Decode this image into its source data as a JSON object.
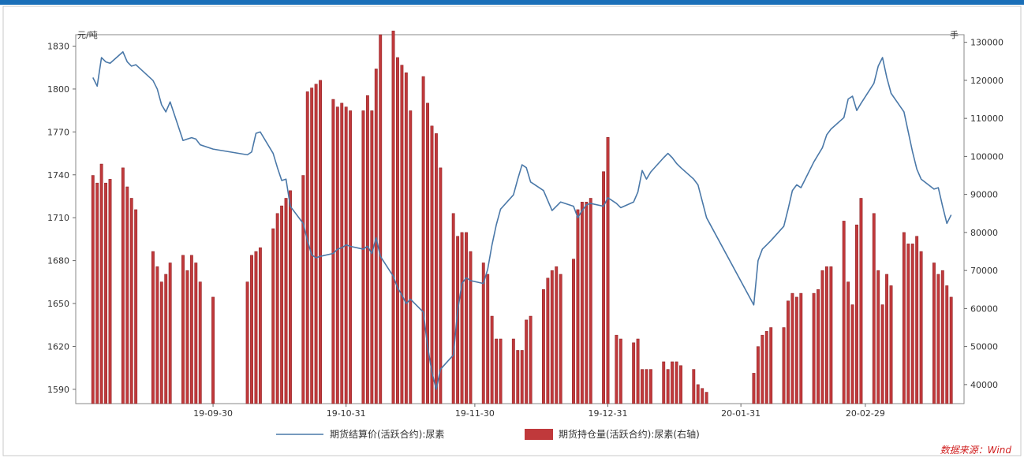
{
  "chart_data": {
    "type": "bar+line",
    "left_unit": "元/吨",
    "right_unit": "手",
    "source": "数据来源：Wind",
    "y_left_ticks": [
      1590,
      1620,
      1650,
      1680,
      1710,
      1740,
      1770,
      1800,
      1830
    ],
    "y_right_ticks": [
      40000,
      50000,
      60000,
      70000,
      80000,
      90000,
      100000,
      110000,
      120000,
      130000
    ],
    "y_left_range": [
      1580,
      1838
    ],
    "y_right_range": [
      35000,
      132000
    ],
    "x_range": [
      "2019-08-29",
      "2020-03-23"
    ],
    "x_ticks": [
      {
        "date": "2019-09-30",
        "label": "19-09-30"
      },
      {
        "date": "2019-10-31",
        "label": "19-10-31"
      },
      {
        "date": "2019-11-30",
        "label": "19-11-30"
      },
      {
        "date": "2019-12-31",
        "label": "19-12-31"
      },
      {
        "date": "2020-01-31",
        "label": "20-01-31"
      },
      {
        "date": "2020-02-29",
        "label": "20-02-29"
      }
    ],
    "legend": [
      "期货结算价(活跃合约):尿素",
      "期货持仓量(活跃合约):尿素(右轴)"
    ],
    "colors": {
      "line": "#4a78a8",
      "bar": "#c0393b",
      "bar_edge": "#8a1f22",
      "frame": "#1a6fb8"
    },
    "series_line": {
      "name": "期货结算价(活跃合约):尿素",
      "points": [
        [
          "2019-09-02",
          1808
        ],
        [
          "2019-09-03",
          1802
        ],
        [
          "2019-09-04",
          1822
        ],
        [
          "2019-09-05",
          1819
        ],
        [
          "2019-09-06",
          1818
        ],
        [
          "2019-09-09",
          1826
        ],
        [
          "2019-09-10",
          1819
        ],
        [
          "2019-09-11",
          1816
        ],
        [
          "2019-09-12",
          1817
        ],
        [
          "2019-09-16",
          1806
        ],
        [
          "2019-09-17",
          1800
        ],
        [
          "2019-09-18",
          1789
        ],
        [
          "2019-09-19",
          1784
        ],
        [
          "2019-09-20",
          1791
        ],
        [
          "2019-09-23",
          1764
        ],
        [
          "2019-09-24",
          1765
        ],
        [
          "2019-09-25",
          1766
        ],
        [
          "2019-09-26",
          1765
        ],
        [
          "2019-09-27",
          1761
        ],
        [
          "2019-09-30",
          1758
        ],
        [
          "2019-10-08",
          1754
        ],
        [
          "2019-10-09",
          1756
        ],
        [
          "2019-10-10",
          1769
        ],
        [
          "2019-10-11",
          1770
        ],
        [
          "2019-10-14",
          1755
        ],
        [
          "2019-10-15",
          1745
        ],
        [
          "2019-10-16",
          1736
        ],
        [
          "2019-10-17",
          1737
        ],
        [
          "2019-10-18",
          1718
        ],
        [
          "2019-10-21",
          1706
        ],
        [
          "2019-10-22",
          1694
        ],
        [
          "2019-10-23",
          1684
        ],
        [
          "2019-10-24",
          1682
        ],
        [
          "2019-10-25",
          1683
        ],
        [
          "2019-10-28",
          1685
        ],
        [
          "2019-10-29",
          1688
        ],
        [
          "2019-10-30",
          1689
        ],
        [
          "2019-10-31",
          1691
        ],
        [
          "2019-11-01",
          1690
        ],
        [
          "2019-11-04",
          1688
        ],
        [
          "2019-11-05",
          1690
        ],
        [
          "2019-11-06",
          1685
        ],
        [
          "2019-11-07",
          1696
        ],
        [
          "2019-11-08",
          1683
        ],
        [
          "2019-11-11",
          1669
        ],
        [
          "2019-11-12",
          1661
        ],
        [
          "2019-11-13",
          1656
        ],
        [
          "2019-11-14",
          1650
        ],
        [
          "2019-11-15",
          1653
        ],
        [
          "2019-11-18",
          1644
        ],
        [
          "2019-11-19",
          1620
        ],
        [
          "2019-11-20",
          1602
        ],
        [
          "2019-11-21",
          1590
        ],
        [
          "2019-11-22",
          1604
        ],
        [
          "2019-11-25",
          1614
        ],
        [
          "2019-11-26",
          1645
        ],
        [
          "2019-11-27",
          1664
        ],
        [
          "2019-11-28",
          1668
        ],
        [
          "2019-11-29",
          1666
        ],
        [
          "2019-12-02",
          1664
        ],
        [
          "2019-12-03",
          1674
        ],
        [
          "2019-12-04",
          1691
        ],
        [
          "2019-12-05",
          1705
        ],
        [
          "2019-12-06",
          1716
        ],
        [
          "2019-12-09",
          1726
        ],
        [
          "2019-12-10",
          1737
        ],
        [
          "2019-12-11",
          1747
        ],
        [
          "2019-12-12",
          1745
        ],
        [
          "2019-12-13",
          1735
        ],
        [
          "2019-12-16",
          1729
        ],
        [
          "2019-12-17",
          1722
        ],
        [
          "2019-12-18",
          1715
        ],
        [
          "2019-12-19",
          1718
        ],
        [
          "2019-12-20",
          1721
        ],
        [
          "2019-12-23",
          1718
        ],
        [
          "2019-12-24",
          1710
        ],
        [
          "2019-12-25",
          1715
        ],
        [
          "2019-12-26",
          1719
        ],
        [
          "2019-12-27",
          1720
        ],
        [
          "2019-12-30",
          1718
        ],
        [
          "2019-12-31",
          1724
        ],
        [
          "2020-01-02",
          1720
        ],
        [
          "2020-01-03",
          1717
        ],
        [
          "2020-01-06",
          1721
        ],
        [
          "2020-01-07",
          1728
        ],
        [
          "2020-01-08",
          1743
        ],
        [
          "2020-01-09",
          1737
        ],
        [
          "2020-01-10",
          1742
        ],
        [
          "2020-01-13",
          1752
        ],
        [
          "2020-01-14",
          1755
        ],
        [
          "2020-01-15",
          1752
        ],
        [
          "2020-01-16",
          1748
        ],
        [
          "2020-01-17",
          1745
        ],
        [
          "2020-01-20",
          1737
        ],
        [
          "2020-01-21",
          1733
        ],
        [
          "2020-01-23",
          1710
        ],
        [
          "2020-02-03",
          1649
        ],
        [
          "2020-02-04",
          1680
        ],
        [
          "2020-02-05",
          1688
        ],
        [
          "2020-02-06",
          1691
        ],
        [
          "2020-02-07",
          1694
        ],
        [
          "2020-02-10",
          1704
        ],
        [
          "2020-02-11",
          1716
        ],
        [
          "2020-02-12",
          1729
        ],
        [
          "2020-02-13",
          1733
        ],
        [
          "2020-02-14",
          1731
        ],
        [
          "2020-02-17",
          1749
        ],
        [
          "2020-02-18",
          1754
        ],
        [
          "2020-02-19",
          1759
        ],
        [
          "2020-02-20",
          1768
        ],
        [
          "2020-02-21",
          1772
        ],
        [
          "2020-02-24",
          1780
        ],
        [
          "2020-02-25",
          1793
        ],
        [
          "2020-02-26",
          1795
        ],
        [
          "2020-02-27",
          1785
        ],
        [
          "2020-02-28",
          1790
        ],
        [
          "2020-03-02",
          1804
        ],
        [
          "2020-03-03",
          1816
        ],
        [
          "2020-03-04",
          1822
        ],
        [
          "2020-03-05",
          1808
        ],
        [
          "2020-03-06",
          1797
        ],
        [
          "2020-03-09",
          1784
        ],
        [
          "2020-03-10",
          1770
        ],
        [
          "2020-03-11",
          1756
        ],
        [
          "2020-03-12",
          1744
        ],
        [
          "2020-03-13",
          1737
        ],
        [
          "2020-03-16",
          1730
        ],
        [
          "2020-03-17",
          1731
        ],
        [
          "2020-03-18",
          1718
        ],
        [
          "2020-03-19",
          1706
        ],
        [
          "2020-03-20",
          1712
        ]
      ]
    },
    "series_bar": {
      "name": "期货持仓量(活跃合约):尿素(右轴)",
      "points": [
        [
          "2019-09-02",
          95000
        ],
        [
          "2019-09-03",
          93000
        ],
        [
          "2019-09-04",
          98000
        ],
        [
          "2019-09-05",
          93000
        ],
        [
          "2019-09-06",
          94000
        ],
        [
          "2019-09-09",
          97000
        ],
        [
          "2019-09-10",
          92000
        ],
        [
          "2019-09-11",
          89000
        ],
        [
          "2019-09-12",
          86000
        ],
        [
          "2019-09-16",
          75000
        ],
        [
          "2019-09-17",
          71000
        ],
        [
          "2019-09-18",
          67000
        ],
        [
          "2019-09-19",
          69000
        ],
        [
          "2019-09-20",
          72000
        ],
        [
          "2019-09-23",
          74000
        ],
        [
          "2019-09-24",
          70000
        ],
        [
          "2019-09-25",
          74000
        ],
        [
          "2019-09-26",
          72000
        ],
        [
          "2019-09-27",
          67000
        ],
        [
          "2019-09-30",
          63000
        ],
        [
          "2019-10-08",
          67000
        ],
        [
          "2019-10-09",
          74000
        ],
        [
          "2019-10-10",
          75000
        ],
        [
          "2019-10-11",
          76000
        ],
        [
          "2019-10-14",
          81000
        ],
        [
          "2019-10-15",
          85000
        ],
        [
          "2019-10-16",
          87000
        ],
        [
          "2019-10-17",
          89000
        ],
        [
          "2019-10-18",
          91000
        ],
        [
          "2019-10-21",
          95000
        ],
        [
          "2019-10-22",
          117000
        ],
        [
          "2019-10-23",
          118000
        ],
        [
          "2019-10-24",
          119000
        ],
        [
          "2019-10-25",
          120000
        ],
        [
          "2019-10-28",
          115000
        ],
        [
          "2019-10-29",
          113000
        ],
        [
          "2019-10-30",
          114000
        ],
        [
          "2019-10-31",
          113000
        ],
        [
          "2019-11-01",
          112000
        ],
        [
          "2019-11-04",
          112000
        ],
        [
          "2019-11-05",
          116000
        ],
        [
          "2019-11-06",
          112000
        ],
        [
          "2019-11-07",
          123000
        ],
        [
          "2019-11-08",
          132000
        ],
        [
          "2019-11-11",
          133000
        ],
        [
          "2019-11-12",
          126000
        ],
        [
          "2019-11-13",
          124000
        ],
        [
          "2019-11-14",
          122000
        ],
        [
          "2019-11-15",
          112000
        ],
        [
          "2019-11-18",
          121000
        ],
        [
          "2019-11-19",
          114000
        ],
        [
          "2019-11-20",
          108000
        ],
        [
          "2019-11-21",
          106000
        ],
        [
          "2019-11-22",
          97000
        ],
        [
          "2019-11-25",
          85000
        ],
        [
          "2019-11-26",
          79000
        ],
        [
          "2019-11-27",
          80000
        ],
        [
          "2019-11-28",
          80000
        ],
        [
          "2019-11-29",
          75000
        ],
        [
          "2019-12-02",
          72000
        ],
        [
          "2019-12-03",
          69000
        ],
        [
          "2019-12-04",
          58000
        ],
        [
          "2019-12-05",
          52000
        ],
        [
          "2019-12-06",
          52000
        ],
        [
          "2019-12-09",
          52000
        ],
        [
          "2019-12-10",
          49000
        ],
        [
          "2019-12-11",
          49000
        ],
        [
          "2019-12-12",
          57000
        ],
        [
          "2019-12-13",
          58000
        ],
        [
          "2019-12-16",
          65000
        ],
        [
          "2019-12-17",
          68000
        ],
        [
          "2019-12-18",
          70000
        ],
        [
          "2019-12-19",
          71000
        ],
        [
          "2019-12-20",
          69000
        ],
        [
          "2019-12-23",
          73000
        ],
        [
          "2019-12-24",
          86000
        ],
        [
          "2019-12-25",
          88000
        ],
        [
          "2019-12-26",
          88000
        ],
        [
          "2019-12-27",
          89000
        ],
        [
          "2019-12-30",
          96000
        ],
        [
          "2019-12-31",
          105000
        ],
        [
          "2020-01-02",
          53000
        ],
        [
          "2020-01-03",
          52000
        ],
        [
          "2020-01-06",
          51000
        ],
        [
          "2020-01-07",
          52000
        ],
        [
          "2020-01-08",
          44000
        ],
        [
          "2020-01-09",
          44000
        ],
        [
          "2020-01-10",
          44000
        ],
        [
          "2020-01-13",
          46000
        ],
        [
          "2020-01-14",
          44000
        ],
        [
          "2020-01-15",
          46000
        ],
        [
          "2020-01-16",
          46000
        ],
        [
          "2020-01-17",
          45000
        ],
        [
          "2020-01-20",
          44000
        ],
        [
          "2020-01-21",
          40000
        ],
        [
          "2020-01-22",
          39000
        ],
        [
          "2020-01-23",
          38000
        ],
        [
          "2020-02-03",
          43000
        ],
        [
          "2020-02-04",
          50000
        ],
        [
          "2020-02-05",
          53000
        ],
        [
          "2020-02-06",
          54000
        ],
        [
          "2020-02-07",
          55000
        ],
        [
          "2020-02-10",
          55000
        ],
        [
          "2020-02-11",
          62000
        ],
        [
          "2020-02-12",
          64000
        ],
        [
          "2020-02-13",
          63000
        ],
        [
          "2020-02-14",
          64000
        ],
        [
          "2020-02-17",
          64000
        ],
        [
          "2020-02-18",
          65000
        ],
        [
          "2020-02-19",
          70000
        ],
        [
          "2020-02-20",
          71000
        ],
        [
          "2020-02-21",
          71000
        ],
        [
          "2020-02-24",
          83000
        ],
        [
          "2020-02-25",
          67000
        ],
        [
          "2020-02-26",
          61000
        ],
        [
          "2020-02-27",
          82000
        ],
        [
          "2020-02-28",
          89000
        ],
        [
          "2020-03-02",
          85000
        ],
        [
          "2020-03-03",
          70000
        ],
        [
          "2020-03-04",
          61000
        ],
        [
          "2020-03-05",
          69000
        ],
        [
          "2020-03-06",
          66000
        ],
        [
          "2020-03-09",
          80000
        ],
        [
          "2020-03-10",
          77000
        ],
        [
          "2020-03-11",
          77000
        ],
        [
          "2020-03-12",
          79000
        ],
        [
          "2020-03-13",
          75000
        ],
        [
          "2020-03-16",
          72000
        ],
        [
          "2020-03-17",
          69000
        ],
        [
          "2020-03-18",
          70000
        ],
        [
          "2020-03-19",
          66000
        ],
        [
          "2020-03-20",
          63000
        ]
      ]
    }
  }
}
